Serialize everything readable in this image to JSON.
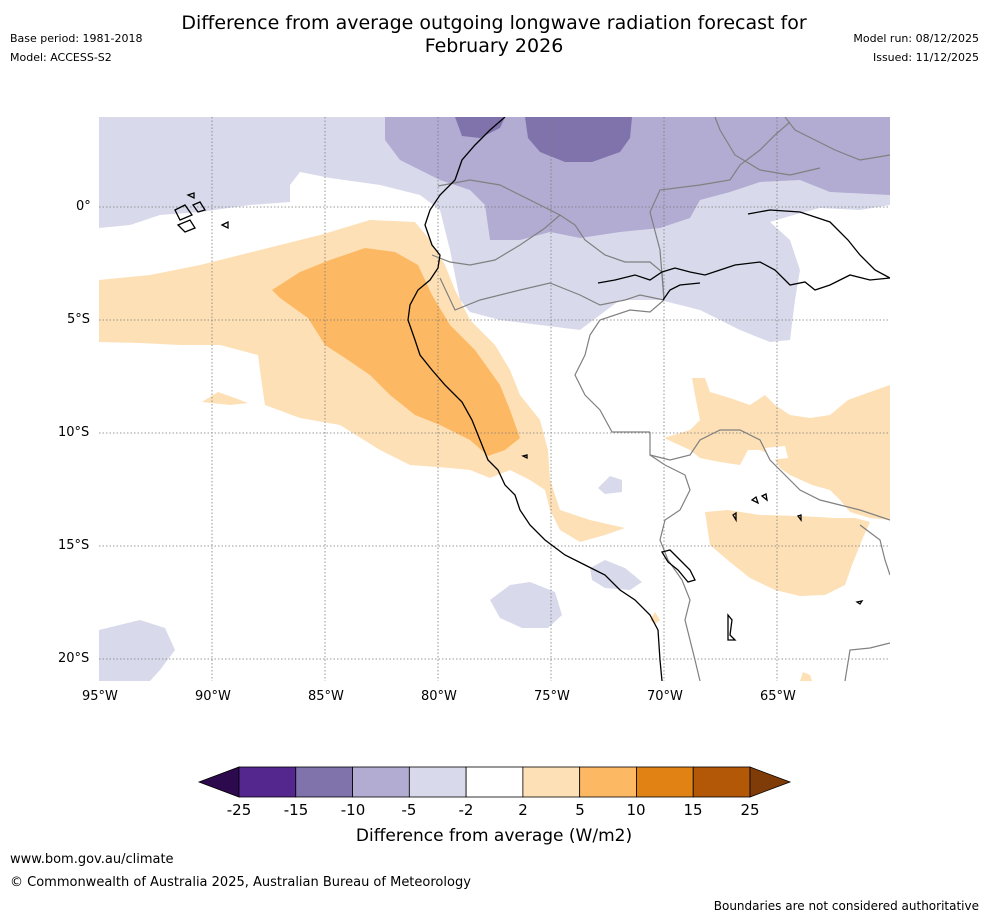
{
  "header": {
    "title_line1": "Difference from average outgoing longwave radiation forecast for",
    "title_line2": "February 2026",
    "base_period": "Base period: 1981-2018",
    "model": "Model: ACCESS-S2",
    "model_run": "Model run: 08/12/2025",
    "issued": "Issued: 11/12/2025"
  },
  "map": {
    "lat_labels": [
      "0°",
      "5°S",
      "10°S",
      "15°S",
      "20°S"
    ],
    "lon_labels": [
      "95°W",
      "90°W",
      "85°W",
      "80°W",
      "75°W",
      "70°W",
      "65°W"
    ],
    "extent": {
      "lon_min": -95,
      "lon_max": -60,
      "lat_min": -21,
      "lat_max": 4
    },
    "gridlines": true,
    "coastline_color": "#000000",
    "border_color": "#808080"
  },
  "colorbar": {
    "title": "Difference from average (W/m2)",
    "ticks": [
      "-25",
      "-15",
      "-10",
      "-5",
      "-2",
      "2",
      "5",
      "10",
      "15",
      "25"
    ],
    "colors": {
      "below_min": "#2d0a4e",
      "c1": "#54278f",
      "c2": "#8073ac",
      "c3": "#b2abd2",
      "c4": "#d8daeb",
      "c5": "#ffffff",
      "c6": "#fee0b6",
      "c7": "#fdb863",
      "c8": "#e08214",
      "c9": "#b35806",
      "above_max": "#7f3b08"
    }
  },
  "footer": {
    "url": "www.bom.gov.au/climate",
    "copyright": "© Commonwealth of Australia 2025, Australian Bureau of Meteorology",
    "disclaimer": "Boundaries are not considered authoritative"
  }
}
